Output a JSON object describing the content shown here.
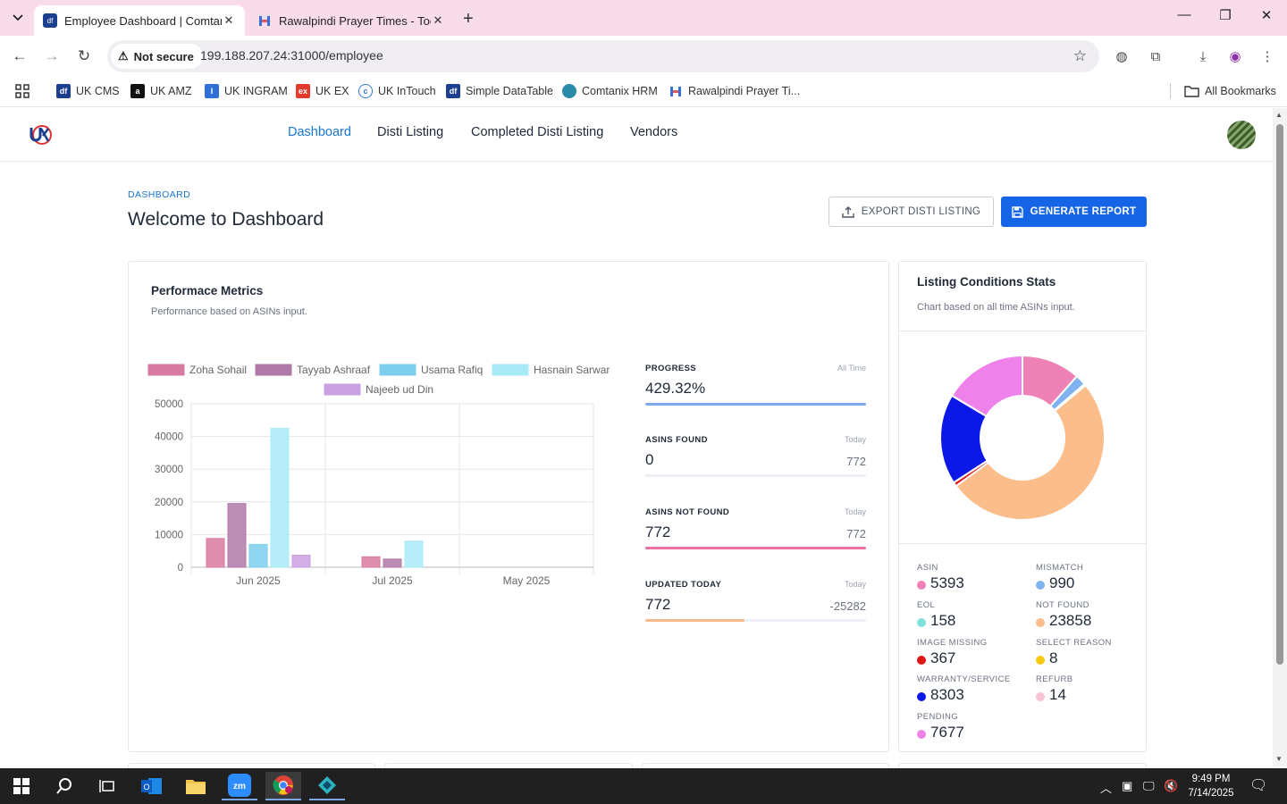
{
  "browser": {
    "tabs": [
      {
        "title": "Employee Dashboard | Comtanix",
        "active": true,
        "favicon": "df"
      },
      {
        "title": "Rawalpindi Prayer Times - Today",
        "active": false,
        "favicon": "prayer"
      }
    ],
    "security_label": "Not secure",
    "url": "199.188.207.24:31000/employee",
    "bookmarks": [
      {
        "label": "UK CMS",
        "icon": "df"
      },
      {
        "label": "UK AMZ",
        "icon": "a"
      },
      {
        "label": "UK INGRAM",
        "icon": "ingram"
      },
      {
        "label": "UK EX",
        "icon": "ex"
      },
      {
        "label": "UK InTouch",
        "icon": "intouch"
      },
      {
        "label": "Simple DataTable",
        "icon": "df"
      },
      {
        "label": "Comtanix HRM",
        "icon": "hrm"
      },
      {
        "label": "Rawalpindi Prayer Ti...",
        "icon": "prayer"
      }
    ],
    "all_bookmarks_label": "All Bookmarks"
  },
  "app": {
    "nav": [
      "Dashboard",
      "Disti Listing",
      "Completed Disti Listing",
      "Vendors"
    ],
    "active_nav": "Dashboard"
  },
  "page": {
    "eyebrow": "DASHBOARD",
    "title": "Welcome to Dashboard",
    "export_label": "EXPORT DISTI LISTING",
    "generate_label": "GENERATE REPORT"
  },
  "perf": {
    "title": "Performace Metrics",
    "subtitle": "Performance based on ASINs input.",
    "metrics": [
      {
        "label": "PROGRESS",
        "period": "All Time",
        "value": "429.32%",
        "total": "",
        "fill_pct": 100,
        "color": "#7fa8ea"
      },
      {
        "label": "ASINS FOUND",
        "period": "Today",
        "value": "0",
        "total": "772",
        "fill_pct": 0,
        "color": "#7fa8ea"
      },
      {
        "label": "ASINS NOT FOUND",
        "period": "Today",
        "value": "772",
        "total": "772",
        "fill_pct": 100,
        "color": "#ec6fa5"
      },
      {
        "label": "UPDATED TODAY",
        "period": "Today",
        "value": "772",
        "total": "-25282",
        "fill_pct": 45,
        "color": "#f6b98b"
      }
    ]
  },
  "chart_data": [
    {
      "type": "bar",
      "categories": [
        "Jun 2025",
        "Jul 2025",
        "May 2025"
      ],
      "ylim": [
        0,
        50000
      ],
      "yticks": [
        "50000",
        "40000",
        "30000",
        "20000",
        "10000",
        "0"
      ],
      "series": [
        {
          "name": "Zoha Sohail",
          "color": "#d97aa0",
          "values": [
            8800,
            3200,
            0
          ]
        },
        {
          "name": "Tayyab Ashraaf",
          "color": "#b07aa8",
          "values": [
            19500,
            2500,
            0
          ]
        },
        {
          "name": "Usama Rafiq",
          "color": "#7ecfee",
          "values": [
            7000,
            0,
            0
          ]
        },
        {
          "name": "Hasnain Sarwar",
          "color": "#a9eaf7",
          "values": [
            42500,
            8000,
            0
          ]
        },
        {
          "name": "Najeeb ud Din",
          "color": "#c9a0e0",
          "values": [
            3700,
            0,
            0
          ]
        }
      ],
      "grid": true,
      "legend": "top"
    },
    {
      "type": "pie",
      "subtype": "doughnut",
      "labels": [
        "ASIN",
        "MISMATCH",
        "EOL",
        "NOT FOUND",
        "IMAGE MISSING",
        "SELECT REASON",
        "WARRANTY/SERVICE",
        "REFURB",
        "PENDING"
      ],
      "values": [
        5393,
        990,
        158,
        23858,
        367,
        8,
        8303,
        14,
        7677
      ],
      "colors": [
        "#ee82b6",
        "#7fb2f0",
        "#7ee0dc",
        "#fbbd8a",
        "#e01515",
        "#f6c913",
        "#0b18e8",
        "#f7c2d4",
        "#ee82ea"
      ]
    }
  ],
  "listing": {
    "title": "Listing Conditions Stats",
    "subtitle": "Chart based on all time ASINs input.",
    "stats": [
      {
        "label": "ASIN",
        "value": "5393",
        "color": "#ee82b6"
      },
      {
        "label": "MISMATCH",
        "value": "990",
        "color": "#7fb2f0"
      },
      {
        "label": "EOL",
        "value": "158",
        "color": "#7ee0dc"
      },
      {
        "label": "NOT FOUND",
        "value": "23858",
        "color": "#fbbd8a"
      },
      {
        "label": "IMAGE MISSING",
        "value": "367",
        "color": "#e01515"
      },
      {
        "label": "SELECT REASON",
        "value": "8",
        "color": "#f6c913"
      },
      {
        "label": "WARRANTY/SERVICE",
        "value": "8303",
        "color": "#0b18e8"
      },
      {
        "label": "REFURB",
        "value": "14",
        "color": "#f7c2d4"
      },
      {
        "label": "PENDING",
        "value": "7677",
        "color": "#ee82ea"
      }
    ]
  },
  "taskbar": {
    "time": "9:49 PM",
    "date": "7/14/2025",
    "apps": [
      "windows-start",
      "search",
      "task-view",
      "outlook",
      "file-explorer",
      "zoom",
      "chrome",
      "app"
    ]
  }
}
